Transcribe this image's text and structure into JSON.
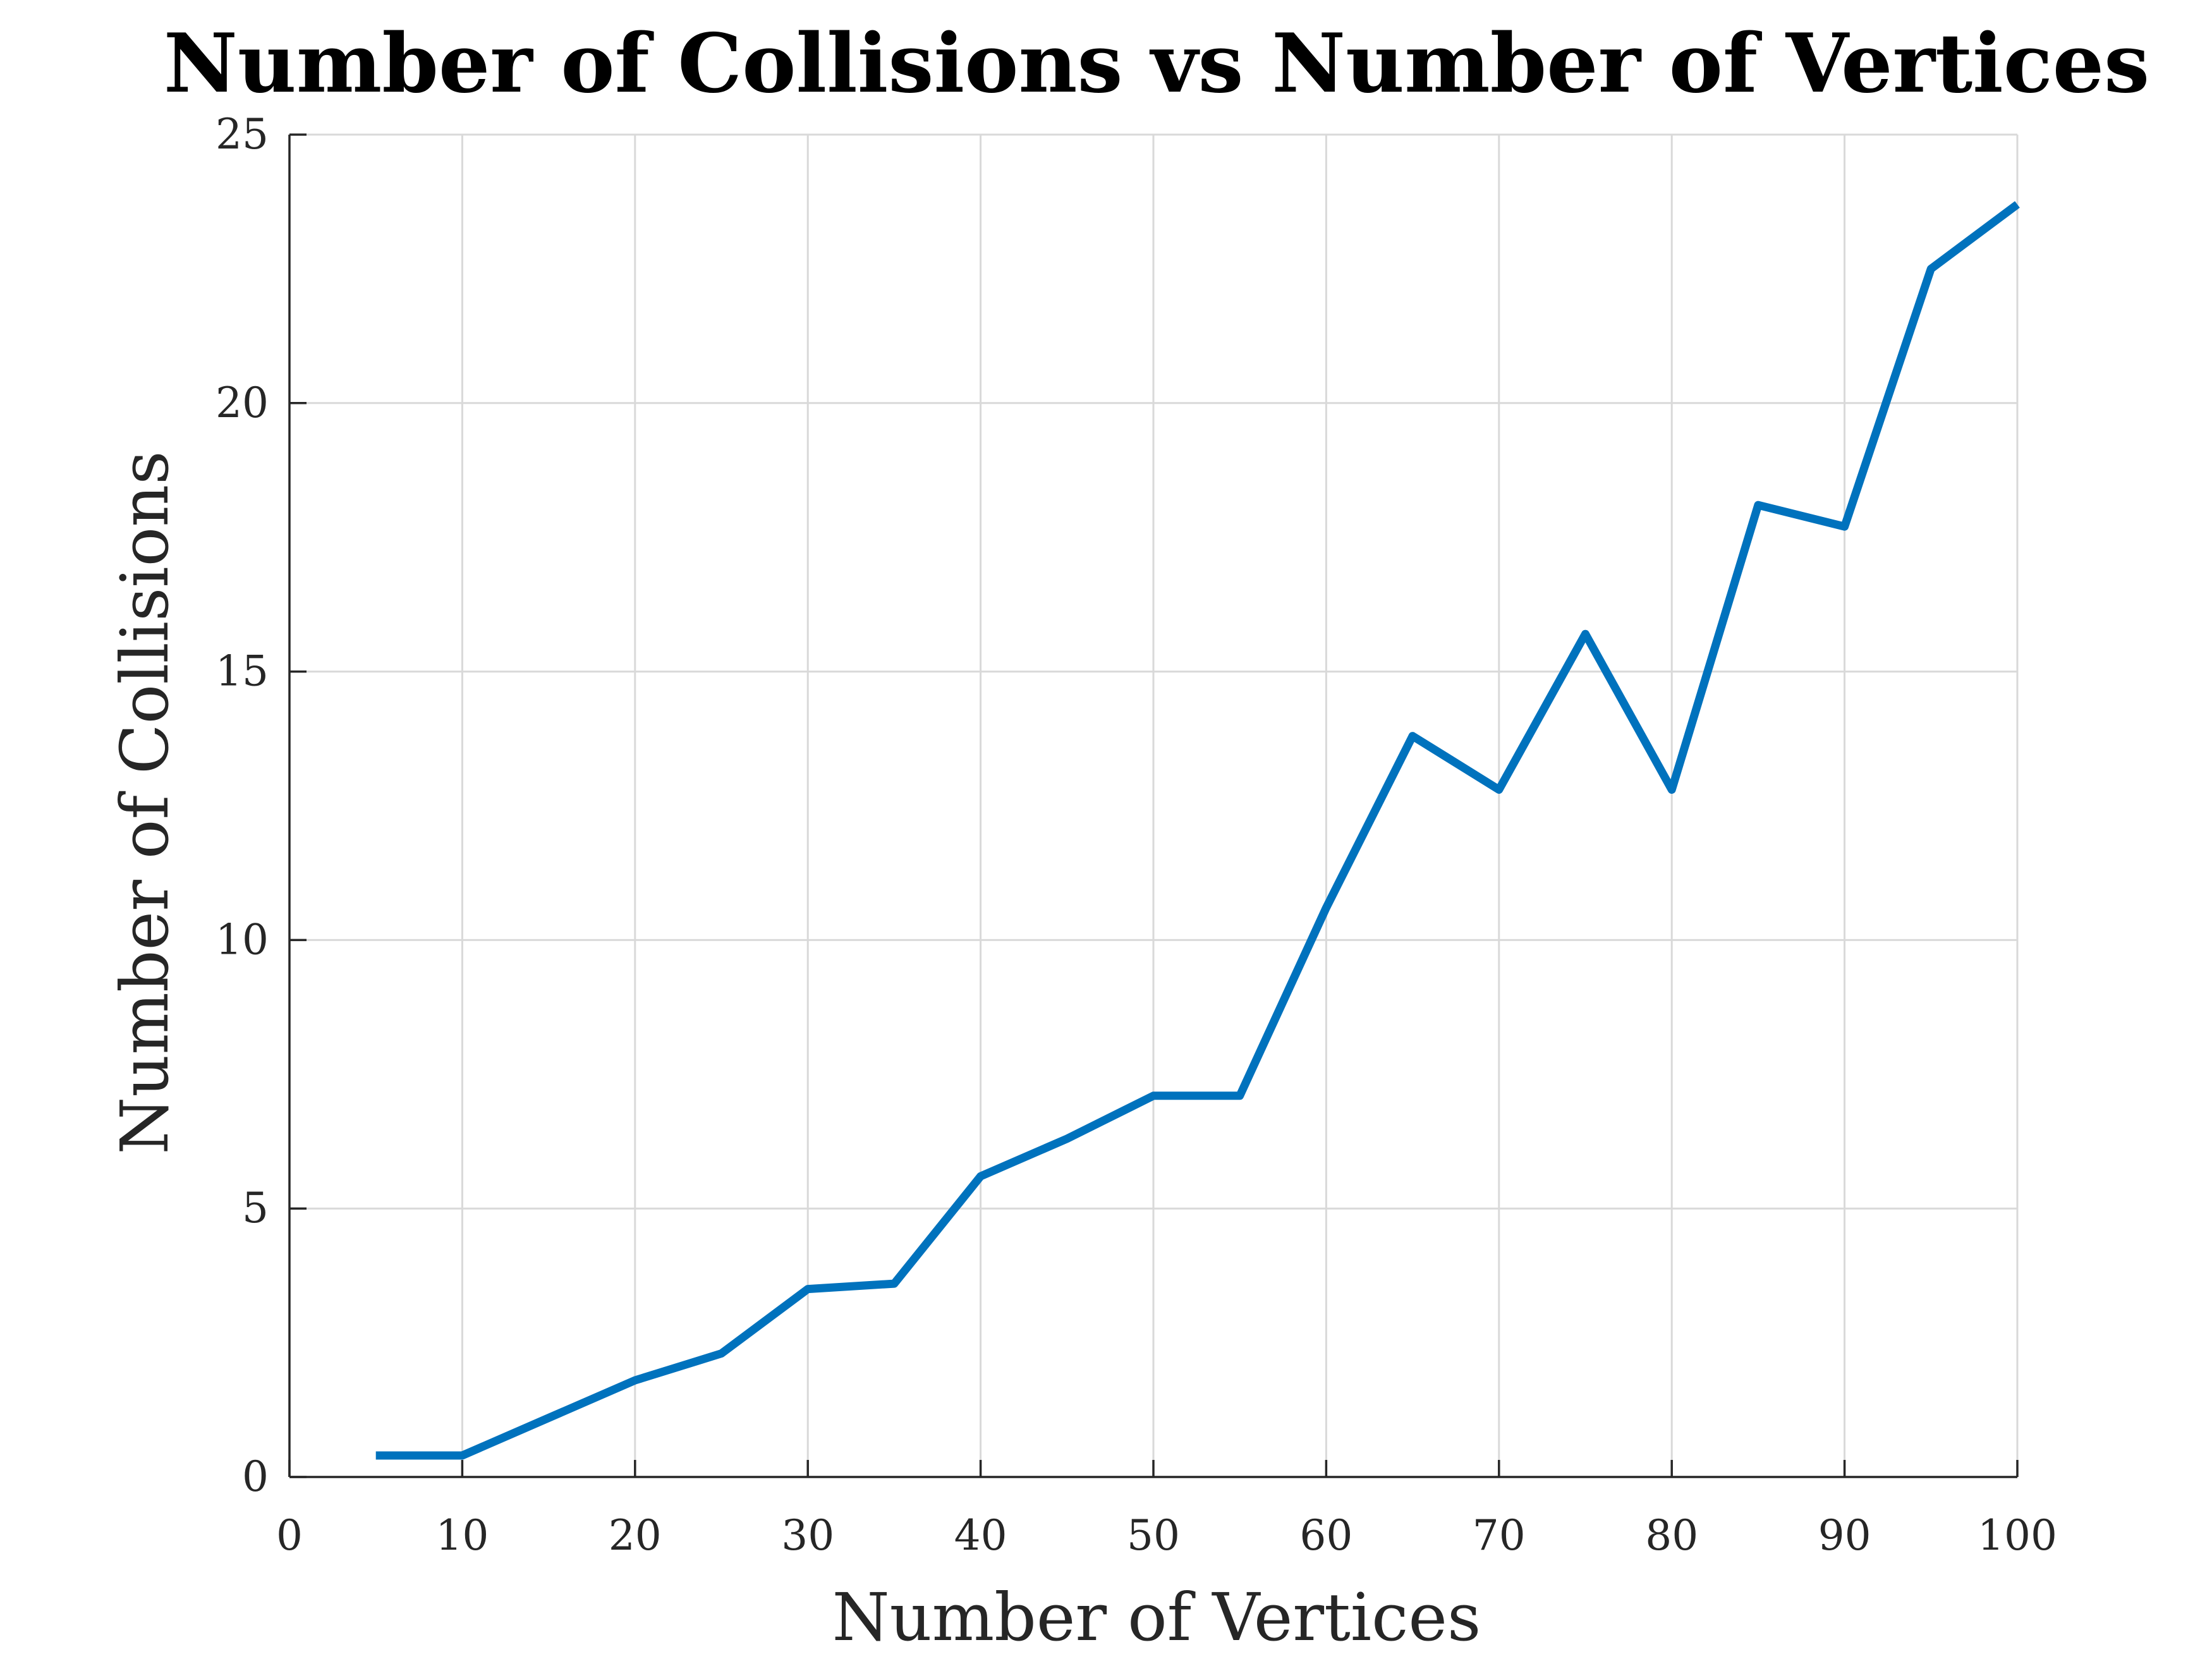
{
  "chart_data": {
    "type": "line",
    "title": "Number of Collisions vs Number of Vertices",
    "xlabel": "Number of Vertices",
    "ylabel": "Number of Collisions",
    "xlim": [
      0,
      100
    ],
    "ylim": [
      0,
      25
    ],
    "xticks": [
      0,
      10,
      20,
      30,
      40,
      50,
      60,
      70,
      80,
      90,
      100
    ],
    "yticks": [
      0,
      5,
      10,
      15,
      20,
      25
    ],
    "grid": true,
    "line_color": "#0072BD",
    "series": [
      {
        "x": [
          5,
          10,
          15,
          20,
          25,
          30,
          35,
          40,
          45,
          50,
          55,
          60,
          65,
          70,
          75,
          80,
          85,
          90,
          95,
          100
        ],
        "values": [
          0.4,
          0.4,
          1.1,
          1.8,
          2.3,
          3.5,
          3.6,
          5.6,
          6.3,
          7.1,
          7.1,
          10.6,
          13.8,
          12.8,
          15.7,
          12.8,
          18.1,
          17.7,
          22.5,
          23.7
        ]
      }
    ]
  }
}
